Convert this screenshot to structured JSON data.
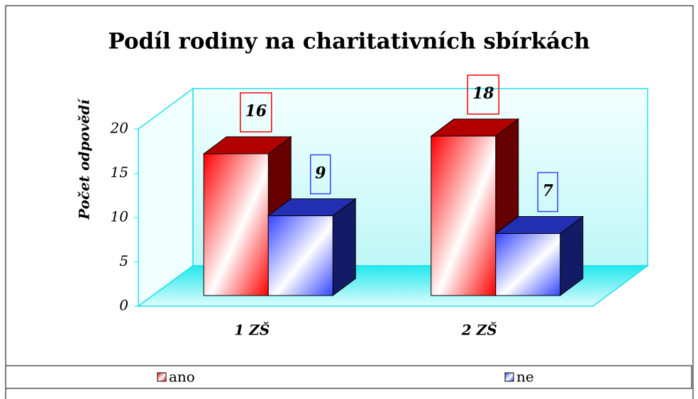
{
  "chart_data": {
    "type": "bar3d",
    "title": "Podíl rodiny na charitativních sbírkách",
    "y_label": "Počet odpovědí",
    "categories": [
      "1 ZŠ",
      "2 ZŠ"
    ],
    "series": [
      {
        "name": "ano",
        "color": "#ff0000",
        "values": [
          16,
          18
        ]
      },
      {
        "name": "ne",
        "color": "#3344ff",
        "values": [
          9,
          7
        ]
      }
    ],
    "ylim": [
      0,
      20
    ],
    "yticks": [
      0,
      5,
      10,
      15,
      20
    ],
    "legend": "bottom"
  }
}
